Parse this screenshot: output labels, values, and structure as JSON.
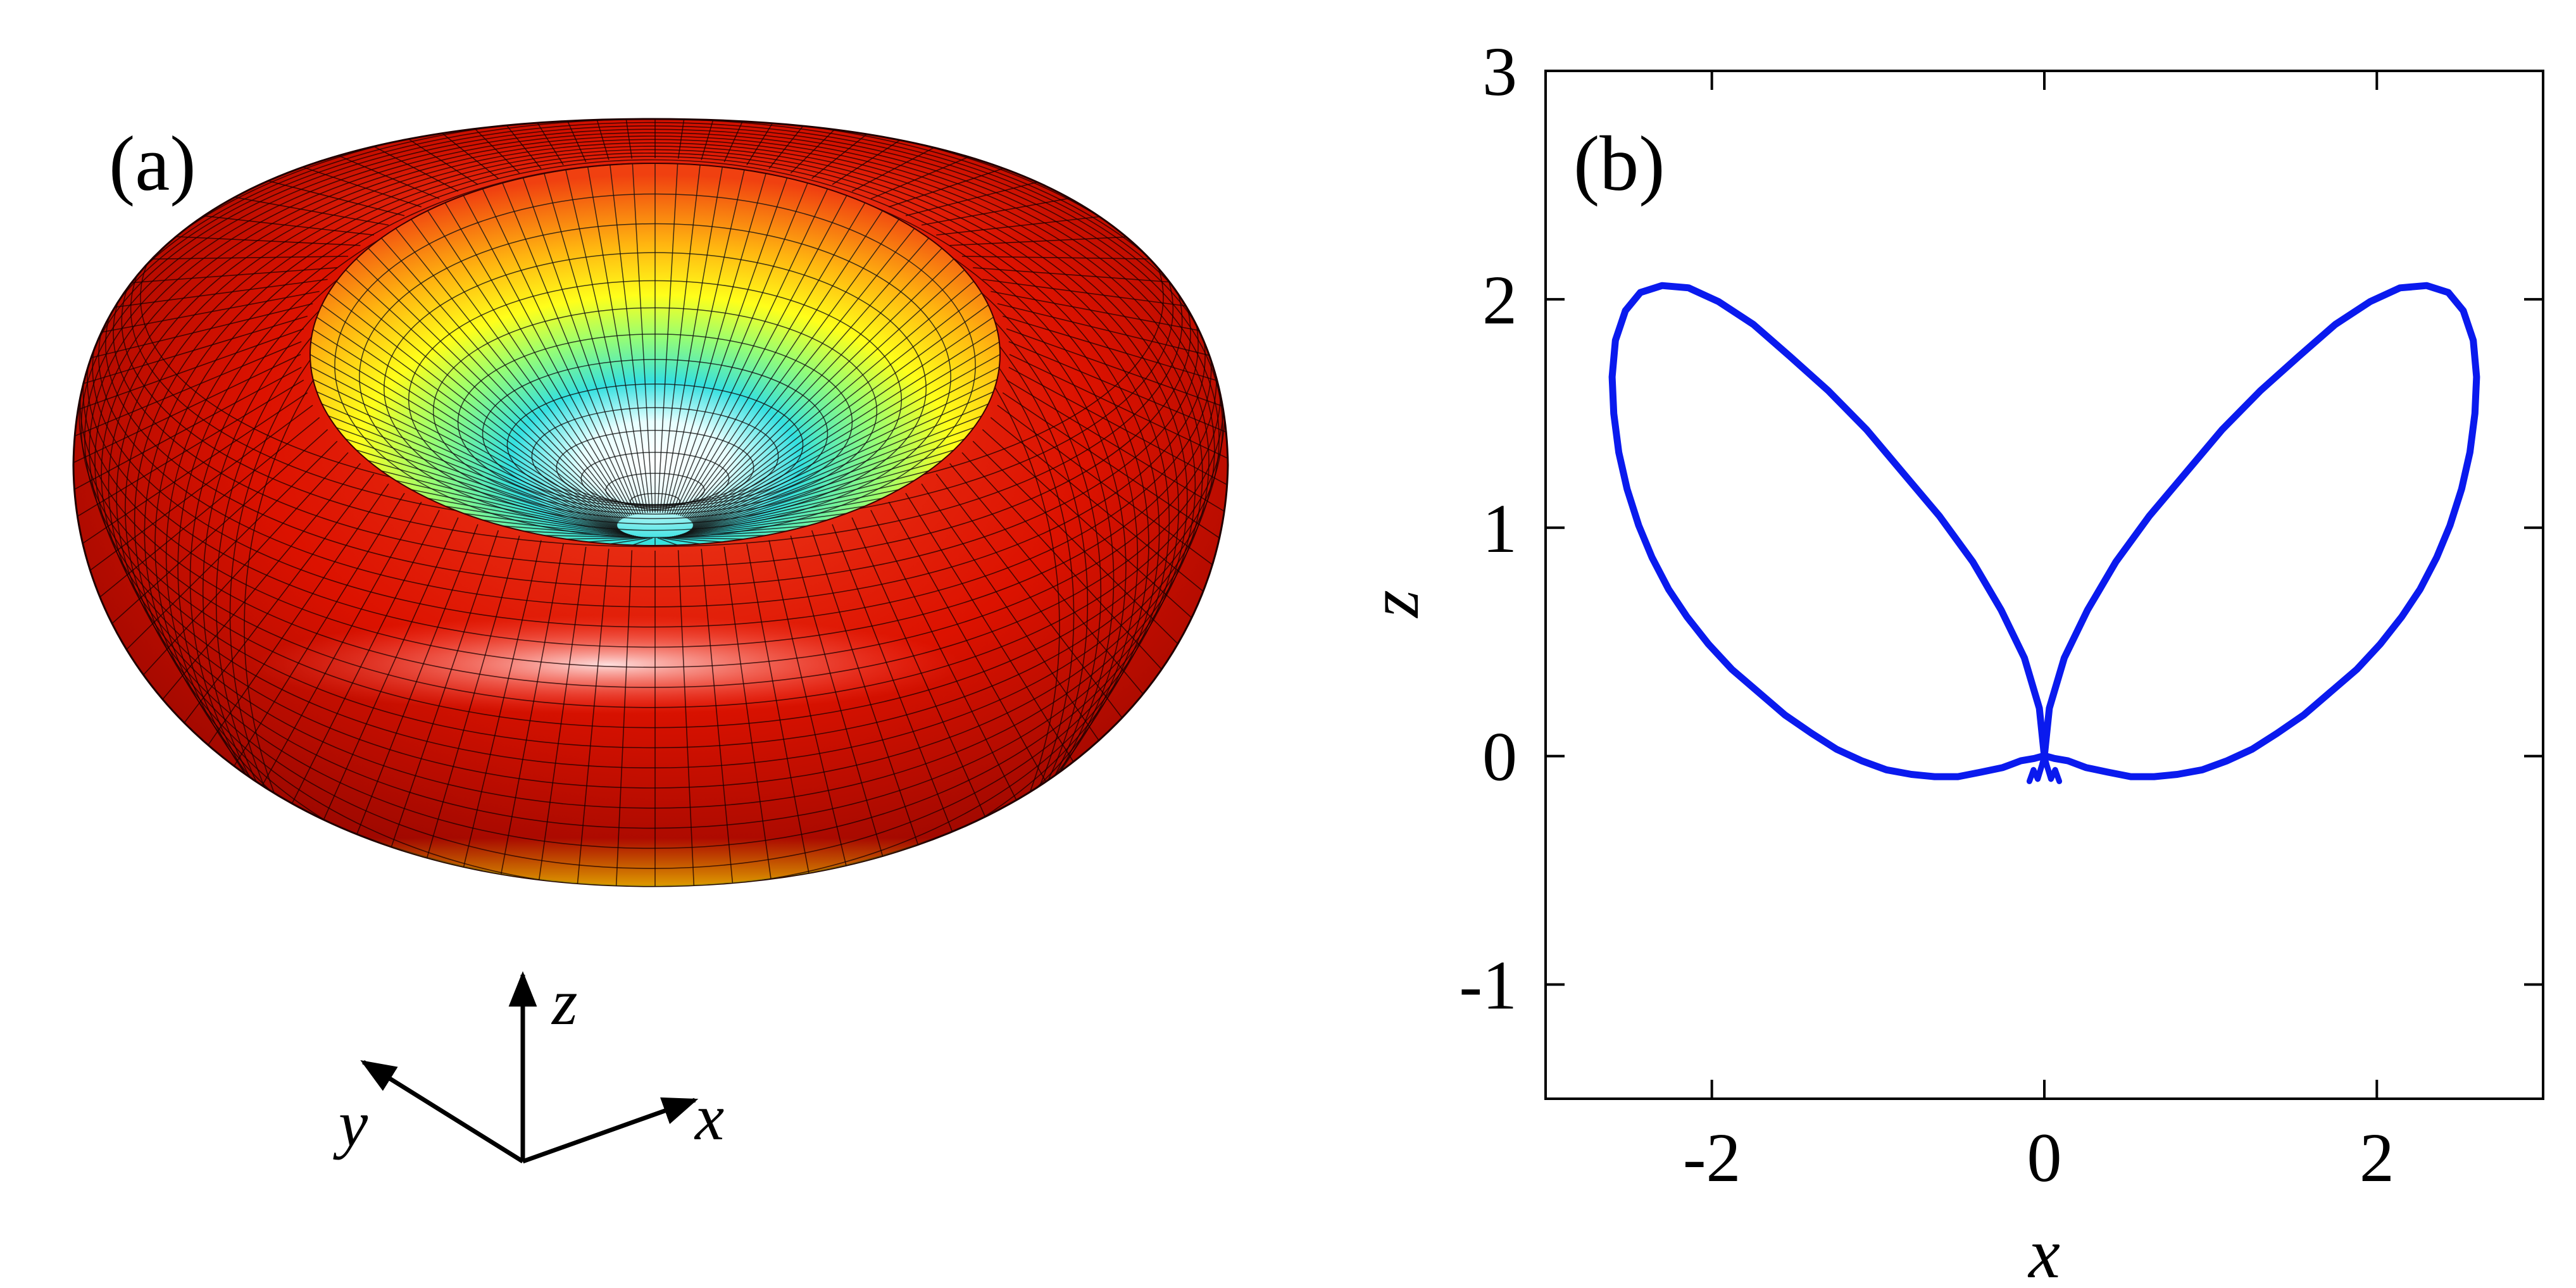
{
  "figure": {
    "panel_a_label": "(a)",
    "panel_b_label": "(b)"
  },
  "panel_a": {
    "surface": "torus-like radiation pattern",
    "colormap": [
      "#ffffff",
      "#34e0e0",
      "#ffff1a",
      "#f06a10",
      "#e01400",
      "#b00a00"
    ],
    "triad": {
      "x_label": "x",
      "y_label": "y",
      "z_label": "z"
    }
  },
  "chart_data": {
    "type": "line",
    "title": "",
    "xlabel": "x",
    "ylabel": "z",
    "xlim": [
      -3,
      3
    ],
    "ylim": [
      -1.5,
      3
    ],
    "x_ticks": [
      -2,
      0,
      2
    ],
    "x_tick_labels": [
      "-2",
      "0",
      "2"
    ],
    "y_ticks": [
      -1,
      0,
      1,
      2,
      3
    ],
    "y_tick_labels": [
      "-1",
      "0",
      "1",
      "2",
      "3"
    ],
    "grid": false,
    "color": "#0a1aee",
    "series": [
      {
        "x": [
          0,
          0.03,
          0.12,
          0.26,
          0.43,
          0.63,
          0.85,
          1.07,
          1.3,
          1.53,
          1.75,
          1.96,
          2.14,
          2.3,
          2.43,
          2.52,
          2.58,
          2.6,
          2.59,
          2.56,
          2.51,
          2.44,
          2.36,
          2.26,
          2.15,
          2.02,
          1.88,
          1.72,
          1.56,
          1.4,
          1.25,
          1.1,
          0.95,
          0.8,
          0.66,
          0.52,
          0.38,
          0.25,
          0.14,
          0.06,
          0.01,
          0
        ],
        "y": [
          0,
          0.21,
          0.43,
          0.64,
          0.85,
          1.05,
          1.24,
          1.43,
          1.6,
          1.75,
          1.89,
          1.99,
          2.05,
          2.06,
          2.03,
          1.95,
          1.82,
          1.66,
          1.5,
          1.33,
          1.17,
          1.01,
          0.87,
          0.73,
          0.61,
          0.49,
          0.38,
          0.28,
          0.18,
          0.1,
          0.03,
          -0.02,
          -0.06,
          -0.08,
          -0.09,
          -0.09,
          -0.07,
          -0.05,
          -0.02,
          -0.01,
          0,
          0
        ]
      },
      {
        "x": [
          0,
          -0.03,
          -0.12,
          -0.26,
          -0.43,
          -0.63,
          -0.85,
          -1.07,
          -1.3,
          -1.53,
          -1.75,
          -1.96,
          -2.14,
          -2.3,
          -2.43,
          -2.52,
          -2.58,
          -2.6,
          -2.59,
          -2.56,
          -2.51,
          -2.44,
          -2.36,
          -2.26,
          -2.15,
          -2.02,
          -1.88,
          -1.72,
          -1.56,
          -1.4,
          -1.25,
          -1.1,
          -0.95,
          -0.8,
          -0.66,
          -0.52,
          -0.38,
          -0.25,
          -0.14,
          -0.06,
          -0.01,
          0
        ],
        "y": [
          0,
          0.21,
          0.43,
          0.64,
          0.85,
          1.05,
          1.24,
          1.43,
          1.6,
          1.75,
          1.89,
          1.99,
          2.05,
          2.06,
          2.03,
          1.95,
          1.82,
          1.66,
          1.5,
          1.33,
          1.17,
          1.01,
          0.87,
          0.73,
          0.61,
          0.49,
          0.38,
          0.28,
          0.18,
          0.1,
          0.03,
          -0.02,
          -0.06,
          -0.08,
          -0.09,
          -0.09,
          -0.07,
          -0.05,
          -0.02,
          -0.01,
          0,
          0
        ]
      },
      {
        "x": [
          -0.04,
          -0.015,
          0,
          0.015,
          0.04,
          0.065,
          0.09
        ],
        "y": [
          -0.1,
          -0.04,
          0,
          -0.04,
          -0.1,
          -0.06,
          -0.11
        ]
      },
      {
        "x": [
          0.04,
          0.015,
          0,
          -0.015,
          -0.04,
          -0.065,
          -0.09
        ],
        "y": [
          -0.1,
          -0.04,
          0,
          -0.04,
          -0.1,
          -0.06,
          -0.11
        ]
      }
    ]
  }
}
